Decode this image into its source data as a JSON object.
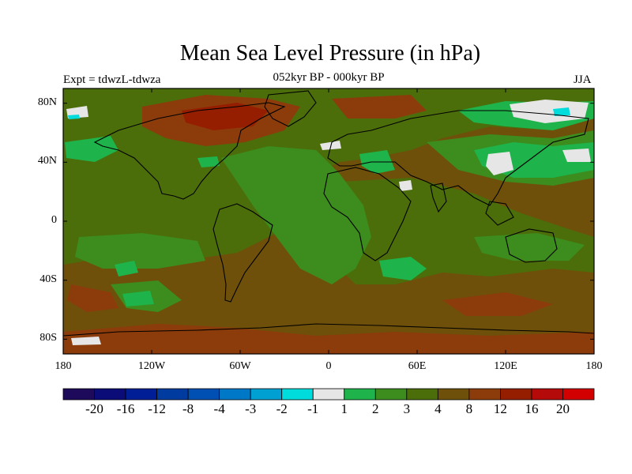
{
  "title": "Mean Sea Level Pressure (in hPa)",
  "subtitle": "052kyr BP - 000kyr BP",
  "experiment_label": "Expt = tdwzL-tdwza",
  "season": "JJA",
  "map": {
    "projection": "cylindrical-equidistant",
    "lon_range": [
      -180,
      180
    ],
    "lat_range": [
      -90,
      90
    ],
    "lon_ticks": [
      {
        "value": -180,
        "label": "180"
      },
      {
        "value": -120,
        "label": "120W"
      },
      {
        "value": -60,
        "label": "60W"
      },
      {
        "value": 0,
        "label": "0"
      },
      {
        "value": 60,
        "label": "60E"
      },
      {
        "value": 120,
        "label": "120E"
      },
      {
        "value": 180,
        "label": "180"
      }
    ],
    "lat_ticks": [
      {
        "value": 80,
        "label": "80N"
      },
      {
        "value": 40,
        "label": "40N"
      },
      {
        "value": 0,
        "label": "0"
      },
      {
        "value": -40,
        "label": "40S"
      },
      {
        "value": -80,
        "label": "80S"
      }
    ]
  },
  "colorbar": {
    "colors": [
      "#1e0a5a",
      "#0c0c78",
      "#001e96",
      "#003ca0",
      "#0050b4",
      "#0078c8",
      "#00a0d2",
      "#00dcdc",
      "#e6e6e6",
      "#1eb44b",
      "#3c8c1e",
      "#4b6e0a",
      "#6e500a",
      "#8c3c0a",
      "#961e00",
      "#b40a0a",
      "#d20000"
    ],
    "labels": [
      "-20",
      "-16",
      "-12",
      "-8",
      "-4",
      "-3",
      "-2",
      "-1",
      "1",
      "2",
      "3",
      "4",
      "8",
      "12",
      "16",
      "20"
    ]
  },
  "field_colors": {
    "base": "#6e500a",
    "band_4": "#4b6e0a",
    "band_3": "#3c8c1e",
    "band_2": "#1eb44b",
    "band_1": "#e6e6e6",
    "band_m1": "#00dcdc",
    "band_8": "#8c3c0a",
    "band_12": "#961e00"
  }
}
